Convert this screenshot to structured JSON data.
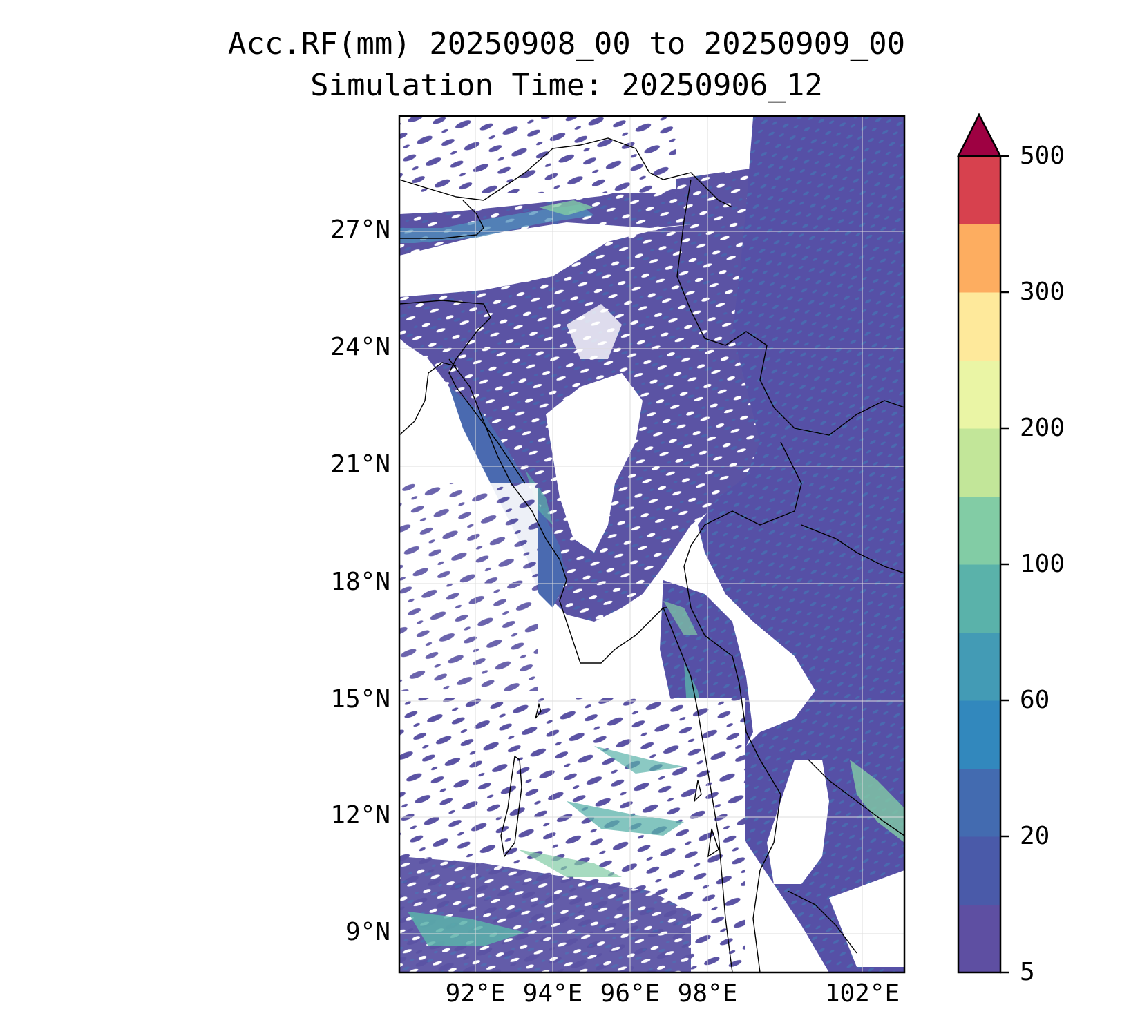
{
  "title": {
    "line1": "Acc.RF(mm) 20250908_00 to 20250909_00",
    "line2": "Simulation Time: 20250906_12"
  },
  "map": {
    "lat_ticks": [
      "27°N",
      "24°N",
      "21°N",
      "18°N",
      "15°N",
      "12°N",
      "9°N"
    ],
    "lon_ticks": [
      "92°E",
      "94°E",
      "96°E",
      "98°E",
      "102°E"
    ],
    "lat_range": [
      8,
      29.8
    ],
    "lon_range": [
      90.1,
      103
    ],
    "region": "Myanmar / Bay of Bengal / Andaman Sea",
    "rain_color_dominant": "#5b53a4",
    "coastline_color": "#000000"
  },
  "colorbar": {
    "tick_labels": [
      "500",
      "300",
      "200",
      "100",
      "60",
      "20",
      "5"
    ],
    "colors": [
      "#5e4fa2",
      "#4a5aa9",
      "#436bb0",
      "#3288bd",
      "#439bb5",
      "#5ab2aa",
      "#82cca5",
      "#c2e699",
      "#eaf5a5",
      "#fee99b",
      "#fdad60",
      "#d7414e",
      "#9e0142"
    ],
    "extend": "max"
  }
}
